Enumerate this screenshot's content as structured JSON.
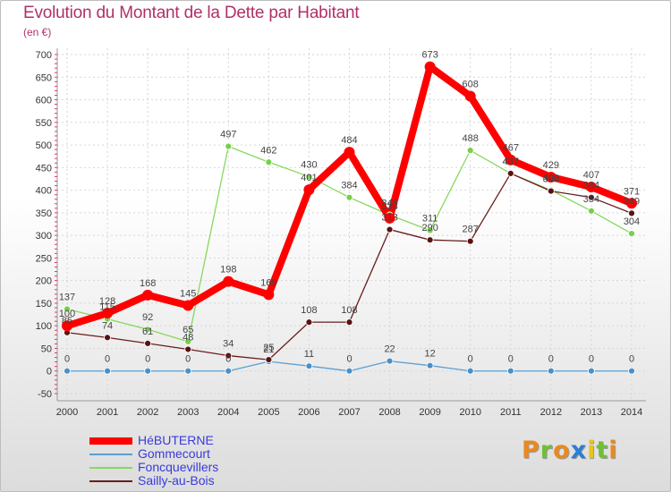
{
  "chart_data": {
    "type": "line",
    "title": "Evolution du Montant de la Dette par Habitant",
    "subtitle": "(en €)",
    "xlabel": "",
    "ylabel": "",
    "categories": [
      "2000",
      "2001",
      "2002",
      "2003",
      "2004",
      "2005",
      "2006",
      "2007",
      "2008",
      "2009",
      "2010",
      "2011",
      "2012",
      "2013",
      "2014"
    ],
    "ylim": [
      -50,
      700
    ],
    "yticks": [
      -50,
      0,
      50,
      100,
      150,
      200,
      250,
      300,
      350,
      400,
      450,
      500,
      550,
      600,
      650,
      700
    ],
    "grid": true,
    "legend_position": "bottom-left",
    "series": [
      {
        "name": "HéBUTERNE",
        "color": "#ff0000",
        "values": [
          100,
          128,
          168,
          145,
          198,
          169,
          401,
          484,
          338,
          673,
          608,
          467,
          429,
          407,
          371
        ]
      },
      {
        "name": "Gommecourt",
        "color": "#5b9fd1",
        "values": [
          0,
          0,
          0,
          0,
          0,
          21,
          11,
          0,
          22,
          12,
          0,
          0,
          0,
          0,
          0
        ]
      },
      {
        "name": "Foncquevillers",
        "color": "#86d85e",
        "values": [
          137,
          115,
          92,
          65,
          497,
          462,
          430,
          384,
          345,
          311,
          488,
          437,
          400,
          354,
          304
        ]
      },
      {
        "name": "Sailly-au-Bois",
        "color": "#6b1d1d",
        "values": [
          85,
          74,
          61,
          48,
          34,
          25,
          108,
          108,
          313,
          290,
          287,
          437,
          398,
          384,
          349
        ]
      }
    ]
  },
  "brand": {
    "letters": [
      "P",
      "r",
      "o",
      "x",
      "i",
      "t",
      "i"
    ],
    "colors": [
      "#e88a1e",
      "#6fbf3a",
      "#e88a1e",
      "#2a7fd4",
      "#e8c51e",
      "#6fbf3a",
      "#e88a1e"
    ]
  }
}
